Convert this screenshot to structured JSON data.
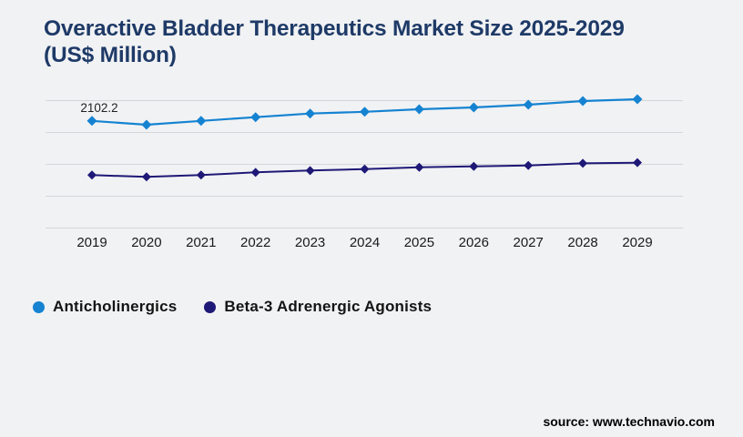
{
  "title": {
    "line1": "Overactive Bladder Therapeutics Market Size 2025-2029",
    "line2": "(US$ Million)",
    "color": "#1e3a67"
  },
  "source": {
    "label": "source: www.technavio.com"
  },
  "chart_data": {
    "type": "line",
    "title": "Overactive Bladder Therapeutics Market Size 2025-2029 (US$ Million)",
    "categories": [
      "2019",
      "2020",
      "2021",
      "2022",
      "2023",
      "2024",
      "2025",
      "2026",
      "2027",
      "2028",
      "2029"
    ],
    "series": [
      {
        "name": "Anticholinergics",
        "color": "#1583d1",
        "values": [
          2102.2,
          2027,
          2102,
          2175,
          2246,
          2281,
          2330,
          2366,
          2420,
          2491,
          2527
        ]
      },
      {
        "name": "Beta-3 Adrenergic Agonists",
        "color": "#1e1876",
        "values": [
          1040,
          1004,
          1040,
          1092,
          1128,
          1156,
          1192,
          1210,
          1228,
          1270,
          1283
        ]
      }
    ],
    "point_label": {
      "series": "Anticholinergics",
      "category": "2019",
      "text": "2102.2"
    },
    "xlabel": "",
    "ylabel": "",
    "ylim": [
      0,
      2500
    ],
    "yaxis_labels_visible": false,
    "gridline_count": 5,
    "grid": "horizontal",
    "gridline_color": "#d5d6d9",
    "marker": "diamond",
    "legend_position": "bottom-left",
    "axis_label_color": "#1a1a1a"
  }
}
